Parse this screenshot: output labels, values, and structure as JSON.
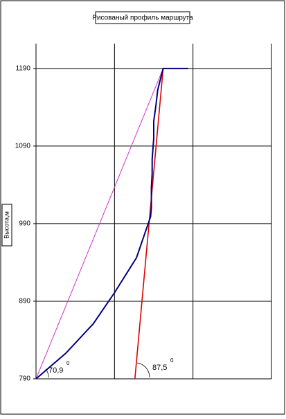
{
  "chart_data": {
    "type": "line",
    "title": "Рисованый профиль маршрута",
    "y_label": "Высота,м",
    "xlim": [
      0,
      3
    ],
    "xticks": [
      0,
      1,
      2,
      3
    ],
    "ylim": [
      790,
      1222
    ],
    "yticks": [
      790,
      890,
      990,
      1090,
      1190
    ],
    "grid": true,
    "series": [
      {
        "color": "#000000",
        "x": [
          0,
          1.91
        ],
        "values": [
          790,
          790
        ]
      },
      {
        "color": "#cc33cc",
        "x": [
          0,
          1.62
        ],
        "values": [
          790,
          1190
        ]
      },
      {
        "color": "#dd0000",
        "x": [
          1.26,
          1.62
        ],
        "values": [
          790,
          1190
        ]
      },
      {
        "color": "#000080",
        "x": [
          0,
          0.38,
          0.73,
          1.0,
          1.28,
          1.46,
          1.47,
          1.47,
          1.48,
          1.48,
          1.5,
          1.5,
          1.53,
          1.55,
          1.62,
          1.94
        ],
        "values": [
          790,
          823,
          861,
          901,
          946,
          999,
          1011,
          1037,
          1055,
          1073,
          1100,
          1122,
          1144,
          1162,
          1190,
          1190
        ]
      }
    ],
    "annotations": [
      {
        "text": "70,9",
        "sup": "0"
      },
      {
        "text": "87,5",
        "sup": "0"
      }
    ]
  }
}
